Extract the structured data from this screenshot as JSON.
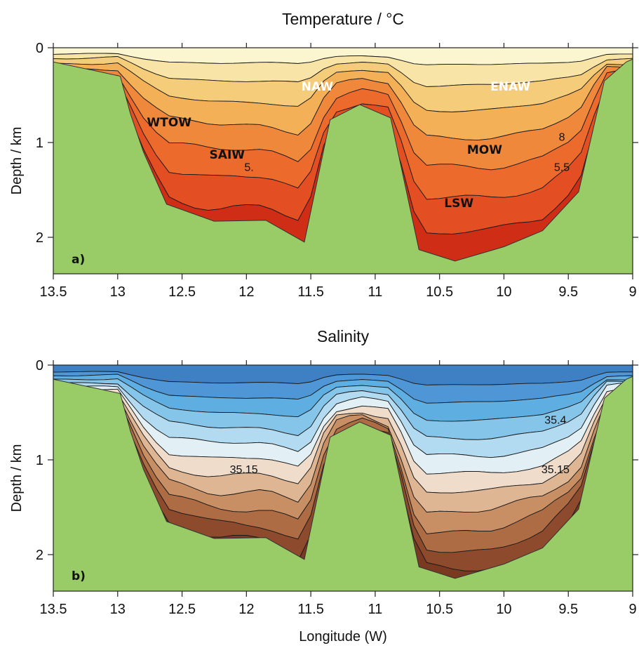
{
  "chart_data": [
    {
      "type": "heatmap",
      "title": "Temperature / °C",
      "panel_label": "a)",
      "ylabel": "Depth / km",
      "xlabel": "",
      "xlim": [
        13.5,
        9
      ],
      "xaxis_reversed": true,
      "ylim": [
        0,
        2.4
      ],
      "yaxis_inverted": true,
      "x_ticks": [
        "13.5",
        "13",
        "12.5",
        "12",
        "11.5",
        "11",
        "10.5",
        "10",
        "9.5",
        "9"
      ],
      "y_ticks": [
        "0",
        "1",
        "2"
      ],
      "colormap": [
        "#fbf6cf",
        "#f8e4a6",
        "#f5cc7a",
        "#f3b057",
        "#f0883c",
        "#ec6a2c",
        "#e34e22",
        "#cf2d16"
      ],
      "bathymetry_color": "#99cc66",
      "water_masses": [
        {
          "name": "NAW",
          "x": 11.45,
          "depth": 0.45,
          "color": "#ffffff"
        },
        {
          "name": "ENAW",
          "x": 9.95,
          "depth": 0.45,
          "color": "#ffffff"
        },
        {
          "name": "WTOW",
          "x": 12.6,
          "depth": 0.83,
          "color": "#111111"
        },
        {
          "name": "SAIW",
          "x": 12.15,
          "depth": 1.17,
          "color": "#111111"
        },
        {
          "name": "MOW",
          "x": 10.15,
          "depth": 1.12,
          "color": "#111111"
        },
        {
          "name": "LSW",
          "x": 10.35,
          "depth": 1.68,
          "color": "#111111"
        }
      ],
      "contour_labels": [
        {
          "text": "8",
          "x": 9.55,
          "depth": 0.98
        },
        {
          "text": "5.5",
          "x": 9.55,
          "depth": 1.3
        },
        {
          "text": "5.",
          "x": 11.98,
          "depth": 1.3
        }
      ]
    },
    {
      "type": "heatmap",
      "title": "Salinity",
      "panel_label": "b)",
      "ylabel": "Depth / km",
      "xlabel": "Longitude (W)",
      "xlim": [
        13.5,
        9
      ],
      "xaxis_reversed": true,
      "ylim": [
        0,
        2.4
      ],
      "yaxis_inverted": true,
      "x_ticks": [
        "13.5",
        "13",
        "12.5",
        "12",
        "11.5",
        "11",
        "10.5",
        "10",
        "9.5",
        "9"
      ],
      "y_ticks": [
        "0",
        "1",
        "2"
      ],
      "colormap": [
        "#3f7fc3",
        "#4e96d5",
        "#5eaee2",
        "#86c5ea",
        "#b2daf0",
        "#e2eff4",
        "#efdccb",
        "#deb693",
        "#c88f64",
        "#ad6c44",
        "#8e4a2c",
        "#7a3a22"
      ],
      "bathymetry_color": "#99cc66",
      "contour_labels": [
        {
          "text": "35.4",
          "x": 9.6,
          "depth": 0.62
        },
        {
          "text": "35.15",
          "x": 12.02,
          "depth": 1.14
        },
        {
          "text": "35.15",
          "x": 9.6,
          "depth": 1.14
        }
      ]
    }
  ]
}
